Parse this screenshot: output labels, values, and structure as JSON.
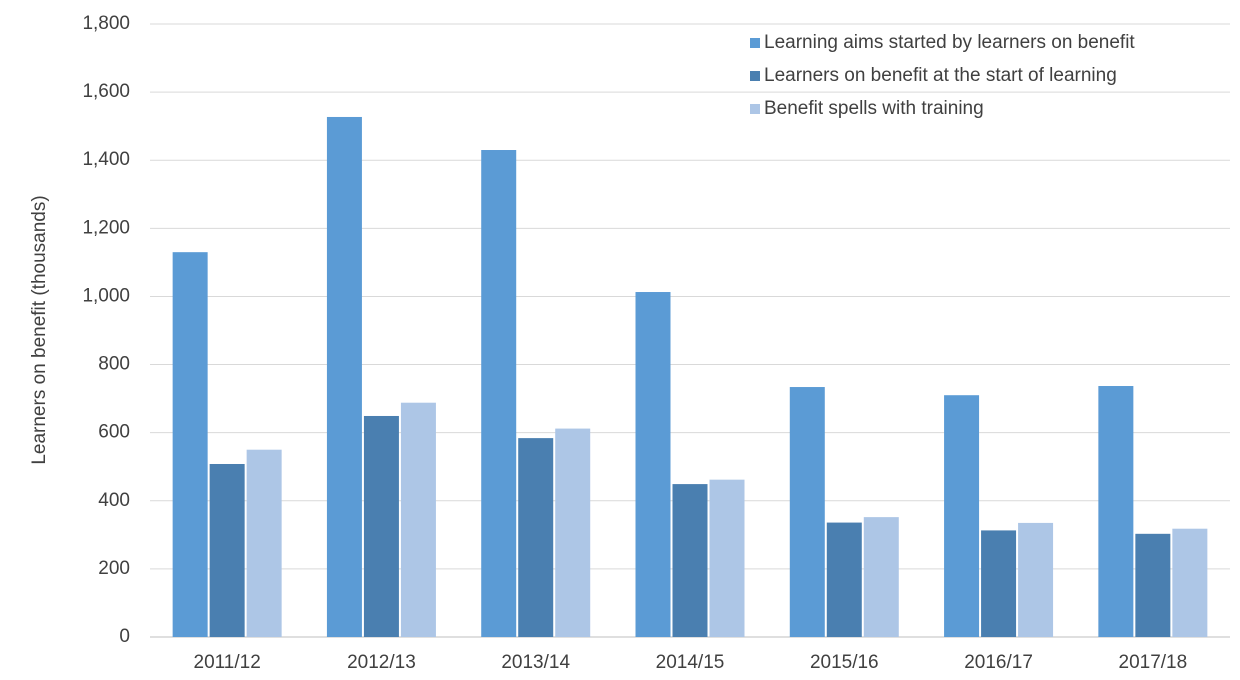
{
  "chart_data": {
    "type": "bar",
    "y_label": "Learners on benefit (thousands)",
    "categories": [
      "2011/12",
      "2012/13",
      "2013/14",
      "2014/15",
      "2015/16",
      "2016/17",
      "2017/18"
    ],
    "series": [
      {
        "name": "Learning aims started by learners on benefit",
        "color": "#5b9bd5",
        "values": [
          1130,
          1527,
          1430,
          1013,
          734,
          710,
          737
        ]
      },
      {
        "name": "Learners on benefit at the start of learning",
        "color": "#4a7fb0",
        "values": [
          508,
          649,
          584,
          449,
          336,
          313,
          303
        ]
      },
      {
        "name": "Benefit spells with training",
        "color": "#adc6e6",
        "values": [
          550,
          688,
          612,
          462,
          352,
          335,
          318
        ]
      }
    ],
    "ylim": [
      0,
      1800
    ],
    "yticks": [
      0,
      200,
      400,
      600,
      800,
      {
        "value": 1000,
        "label": "1,000"
      },
      {
        "value": 1200,
        "label": "1,200"
      },
      {
        "value": 1400,
        "label": "1,400"
      },
      {
        "value": 1600,
        "label": "1,600"
      },
      {
        "value": 1800,
        "label": "1,800"
      }
    ],
    "grid": true,
    "legend": "top-right"
  }
}
